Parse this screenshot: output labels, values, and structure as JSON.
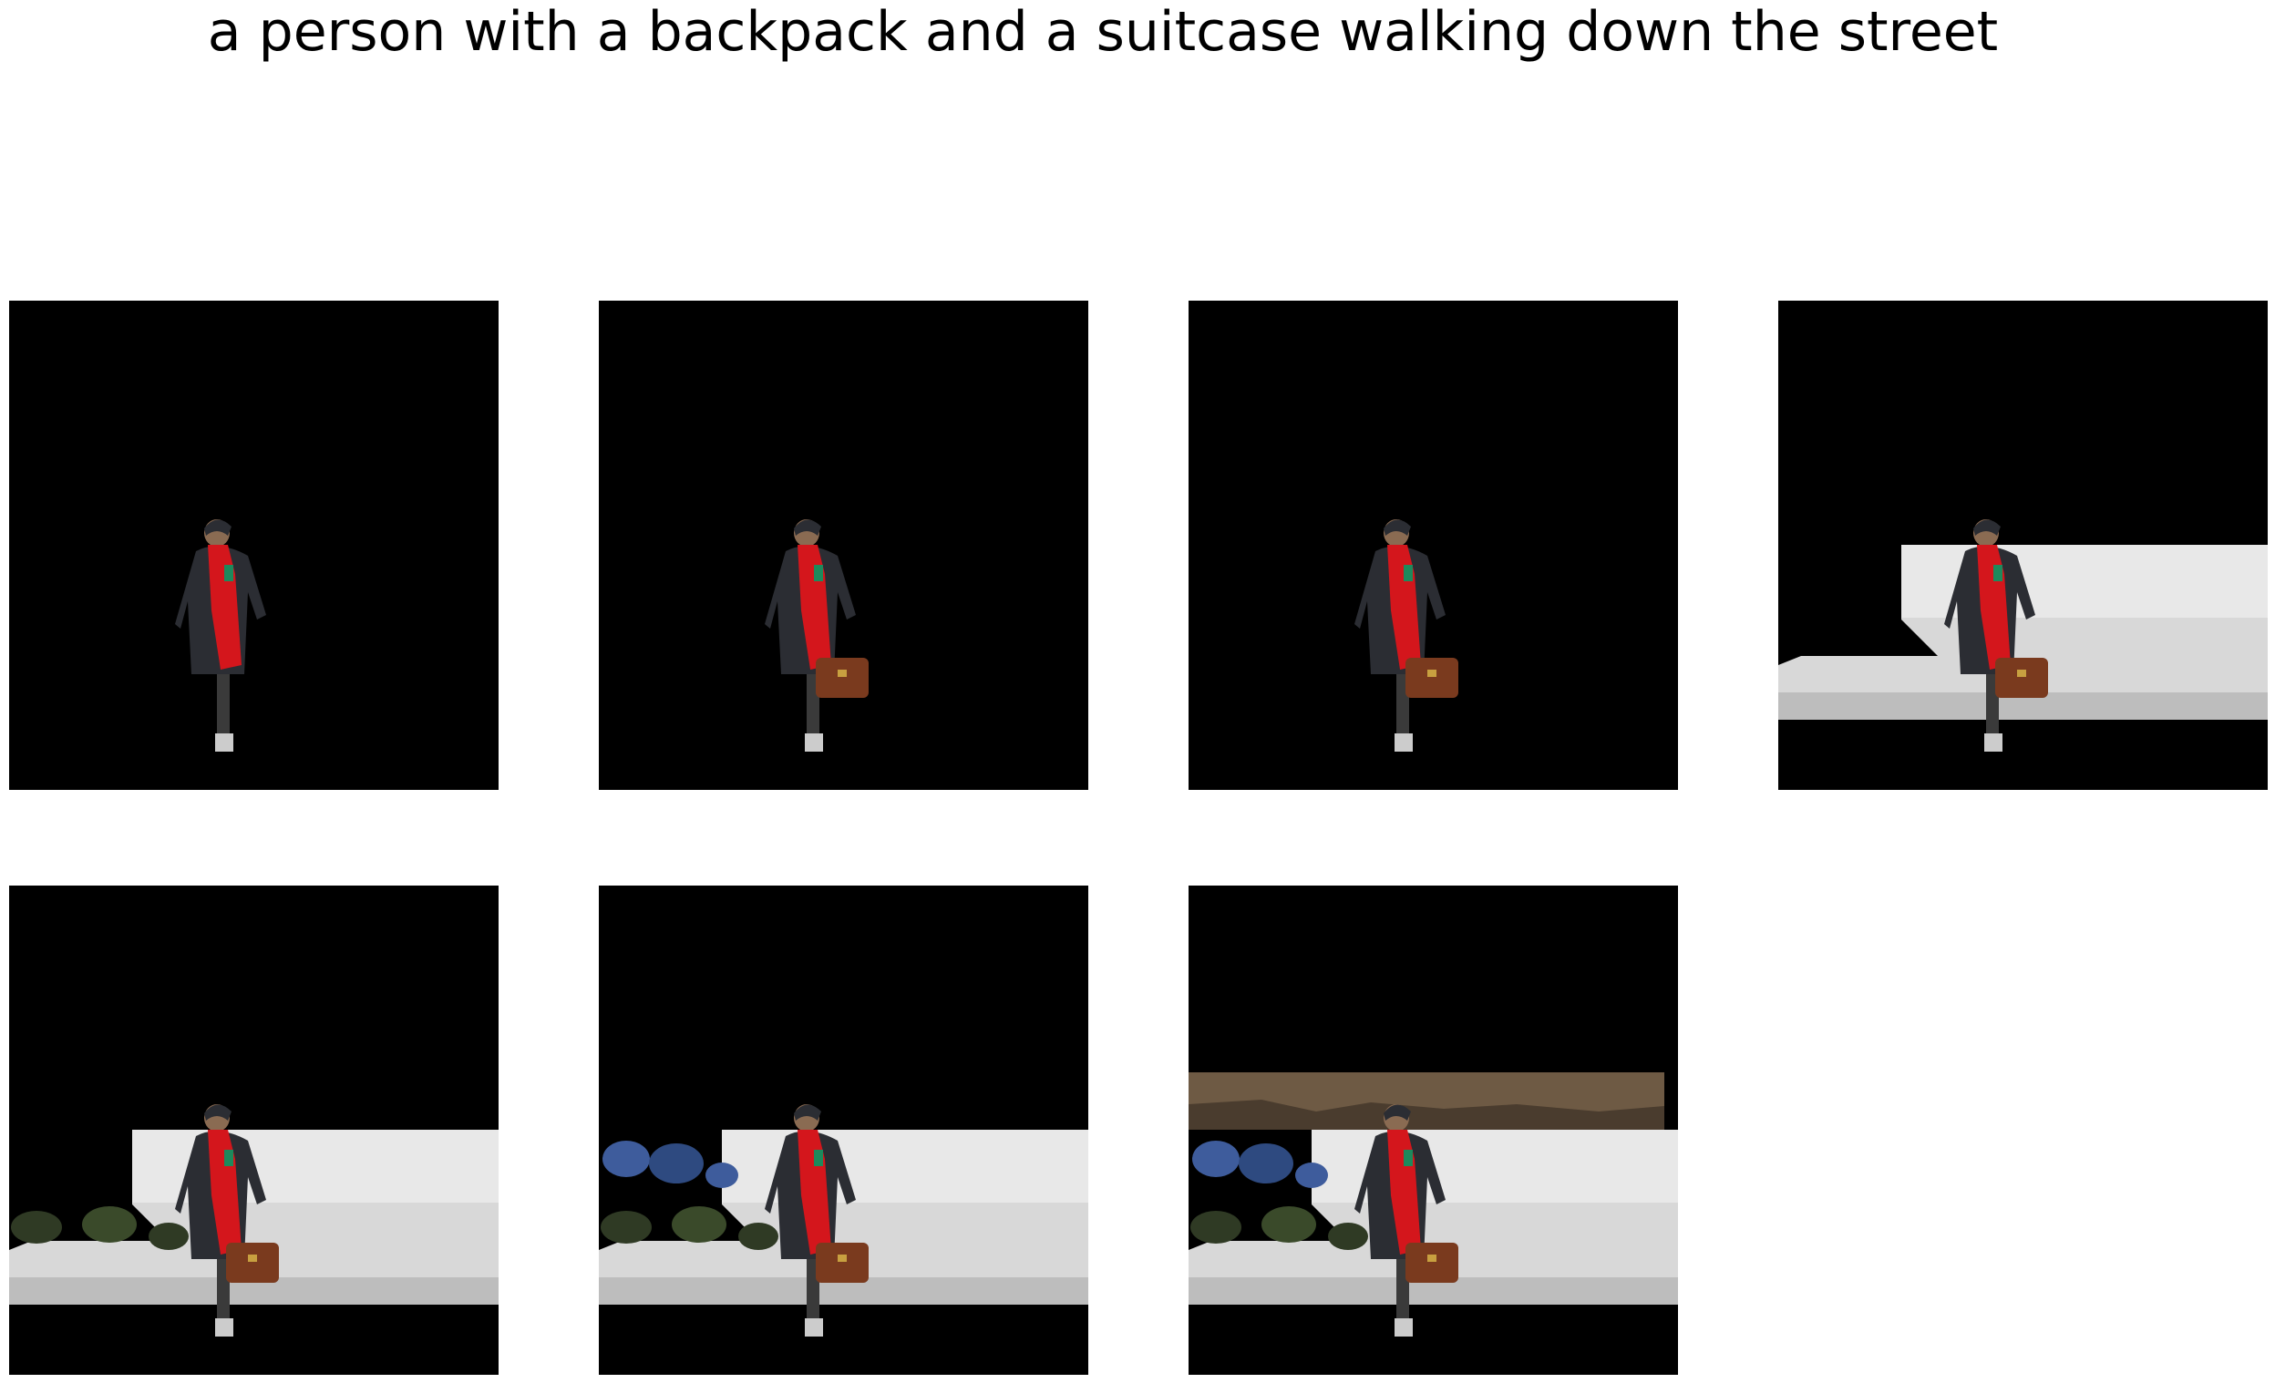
{
  "figure": {
    "caption": "a person with a backpack and a suitcase walking down the street"
  },
  "panels": [
    {
      "id": 1,
      "layers": [
        "person"
      ]
    },
    {
      "id": 2,
      "layers": [
        "person",
        "handbag"
      ]
    },
    {
      "id": 3,
      "layers": [
        "person",
        "handbag"
      ]
    },
    {
      "id": 4,
      "layers": [
        "bench",
        "person",
        "handbag"
      ]
    },
    {
      "id": 5,
      "layers": [
        "bench",
        "plants",
        "person",
        "handbag"
      ]
    },
    {
      "id": 6,
      "layers": [
        "bench",
        "plants",
        "person",
        "handbag"
      ]
    },
    {
      "id": 7,
      "layers": [
        "bench",
        "plants",
        "trees",
        "person",
        "handbag"
      ]
    }
  ],
  "colors": {
    "mask": "#000000",
    "scarf": "#d4161c",
    "coat": "#2b2d33",
    "bag": "#7a3a1e",
    "bench": "#dcdcdc",
    "plants": "#2f3a24",
    "trees": "#6e5a44"
  }
}
